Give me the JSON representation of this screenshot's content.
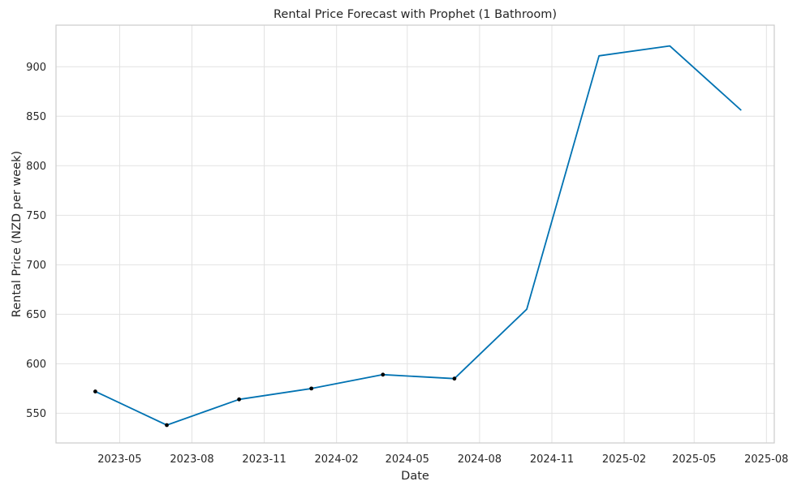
{
  "chart_data": {
    "type": "line",
    "title": "Rental Price Forecast with Prophet (1 Bathroom)",
    "xlabel": "Date",
    "ylabel": "Rental Price (NZD per week)",
    "xlim": [
      "2023-02-09",
      "2025-08-11"
    ],
    "ylim": [
      520,
      942
    ],
    "x_ticks": [
      "2023-05",
      "2023-08",
      "2023-11",
      "2024-02",
      "2024-05",
      "2024-08",
      "2024-11",
      "2025-02",
      "2025-05",
      "2025-08"
    ],
    "y_ticks": [
      550,
      600,
      650,
      700,
      750,
      800,
      850,
      900
    ],
    "grid": true,
    "line_color": "#0072b2",
    "marker_color": "#000000",
    "forecast": {
      "x": [
        "2023-03-31",
        "2023-06-30",
        "2023-09-30",
        "2023-12-31",
        "2024-03-31",
        "2024-06-30",
        "2024-09-30",
        "2024-12-31",
        "2025-03-31",
        "2025-06-30"
      ],
      "y": [
        572,
        538,
        564,
        575,
        589,
        585,
        655,
        911,
        921,
        856
      ]
    },
    "observed": {
      "x": [
        "2023-03-31",
        "2023-06-30",
        "2023-09-30",
        "2023-12-31",
        "2024-03-31",
        "2024-06-30"
      ],
      "y": [
        572,
        538,
        564,
        575,
        589,
        585
      ]
    }
  }
}
